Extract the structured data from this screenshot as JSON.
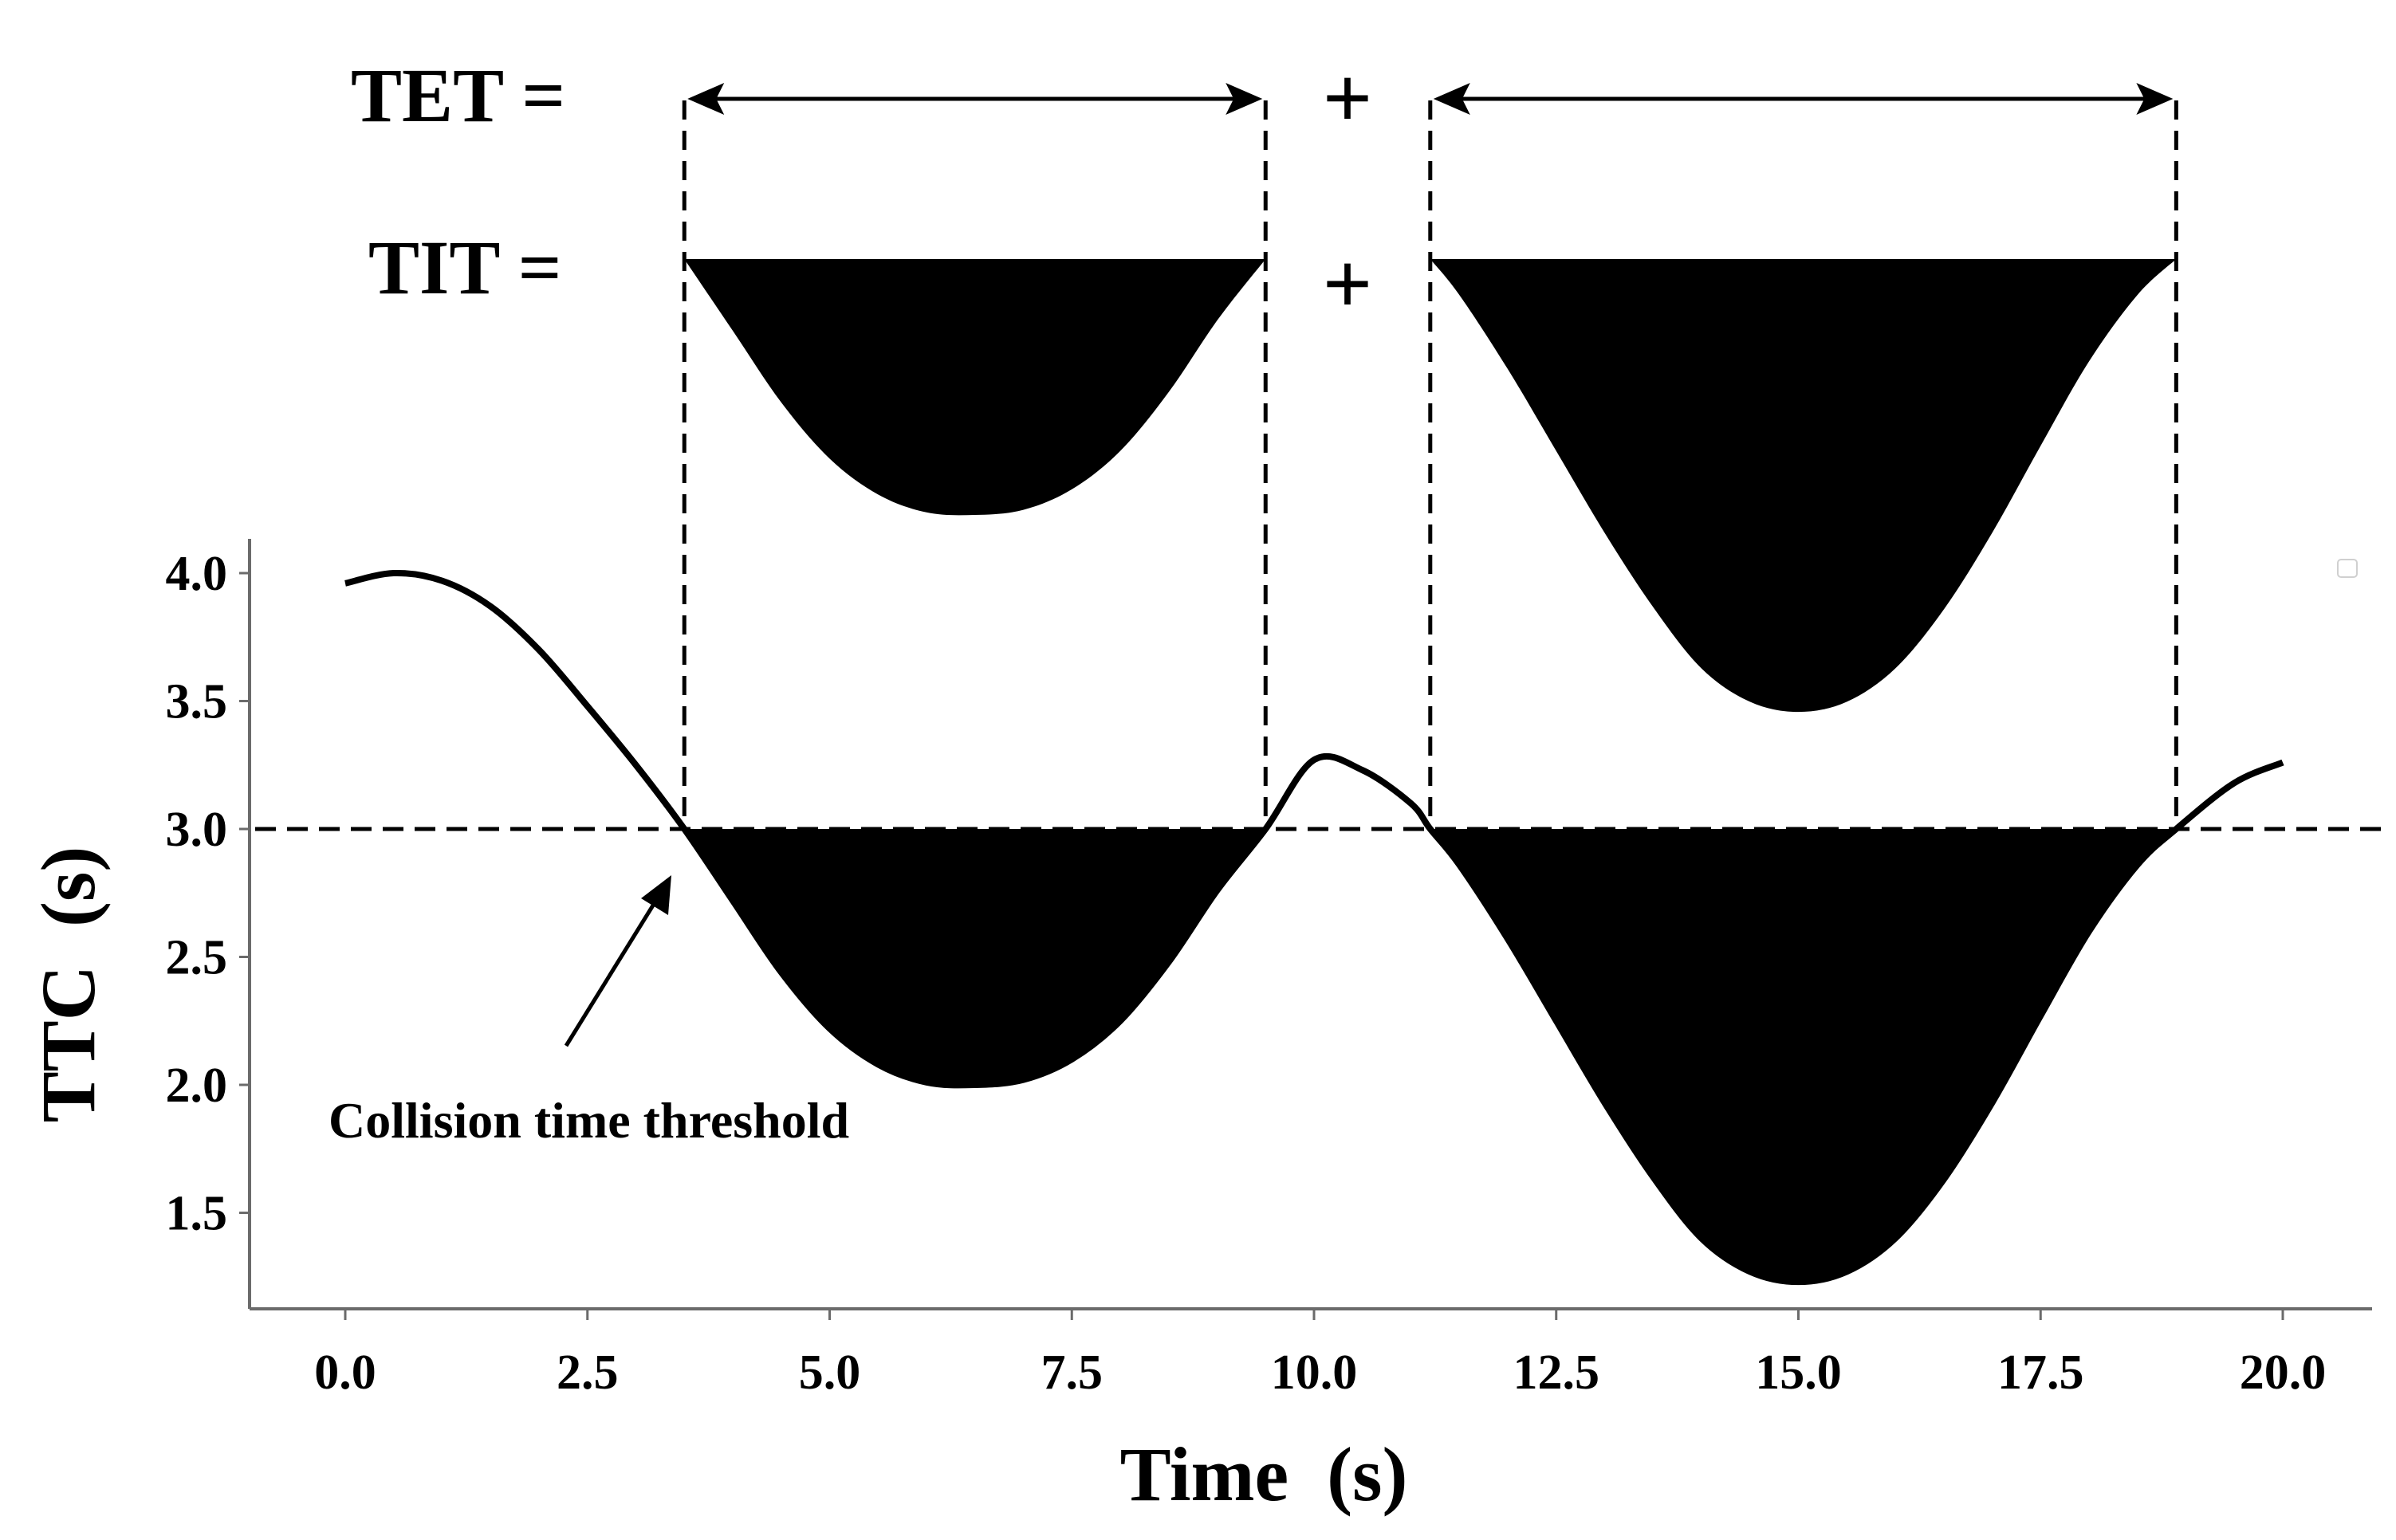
{
  "chart_data": {
    "type": "line",
    "title": "",
    "xlabel": "Time  (s)",
    "ylabel": "TTC  (s)",
    "xlim": [
      -1.0,
      21.0
    ],
    "ylim": [
      1.0,
      4.1
    ],
    "x_ticks": [
      {
        "value": 0.0,
        "label": "0.0"
      },
      {
        "value": 2.5,
        "label": "2.5"
      },
      {
        "value": 5.0,
        "label": "5.0"
      },
      {
        "value": 7.5,
        "label": "7.5"
      },
      {
        "value": 10.0,
        "label": "10.0"
      },
      {
        "value": 12.5,
        "label": "12.5"
      },
      {
        "value": 15.0,
        "label": "15.0"
      },
      {
        "value": 17.5,
        "label": "17.5"
      },
      {
        "value": 20.0,
        "label": "20.0"
      }
    ],
    "y_ticks": [
      {
        "value": 1.5,
        "label": "1.5"
      },
      {
        "value": 2.0,
        "label": "2.0"
      },
      {
        "value": 2.5,
        "label": "2.5"
      },
      {
        "value": 3.0,
        "label": "3.0"
      },
      {
        "value": 3.5,
        "label": "3.5"
      },
      {
        "value": 4.0,
        "label": "4.0"
      }
    ],
    "grid": false,
    "threshold": {
      "value": 3.0,
      "label": "Collision time threshold",
      "style": "dashed"
    },
    "series": [
      {
        "name": "TTC",
        "x": [
          0.0,
          0.5,
          1.0,
          1.5,
          2.0,
          2.5,
          3.0,
          3.5,
          4.0,
          4.5,
          5.0,
          5.5,
          6.0,
          6.5,
          7.0,
          7.5,
          8.0,
          8.5,
          9.0,
          9.5,
          10.0,
          10.5,
          11.0,
          11.2,
          11.5,
          12.0,
          12.5,
          13.0,
          13.5,
          14.0,
          14.5,
          15.0,
          15.5,
          16.0,
          16.5,
          17.0,
          17.5,
          18.0,
          18.5,
          18.9,
          19.5,
          20.0
        ],
        "y": [
          3.96,
          4.0,
          3.97,
          3.87,
          3.7,
          3.48,
          3.25,
          3.0,
          2.72,
          2.44,
          2.22,
          2.08,
          2.01,
          2.0,
          2.02,
          2.1,
          2.25,
          2.48,
          2.76,
          3.0,
          3.27,
          3.23,
          3.1,
          3.0,
          2.86,
          2.57,
          2.25,
          1.93,
          1.64,
          1.4,
          1.27,
          1.23,
          1.27,
          1.4,
          1.63,
          1.93,
          2.27,
          2.6,
          2.86,
          3.0,
          3.18,
          3.26
        ]
      }
    ],
    "exceedance_intervals": [
      {
        "start": 3.5,
        "end": 9.5,
        "min_ttc": 2.0,
        "min_at": 6.5
      },
      {
        "start": 11.2,
        "end": 18.9,
        "min_ttc": 1.23,
        "min_at": 15.0
      }
    ],
    "annotations": {
      "tet_label": "TET =",
      "tit_label": "TIT =",
      "plus_1": "+",
      "plus_2": "+"
    }
  }
}
